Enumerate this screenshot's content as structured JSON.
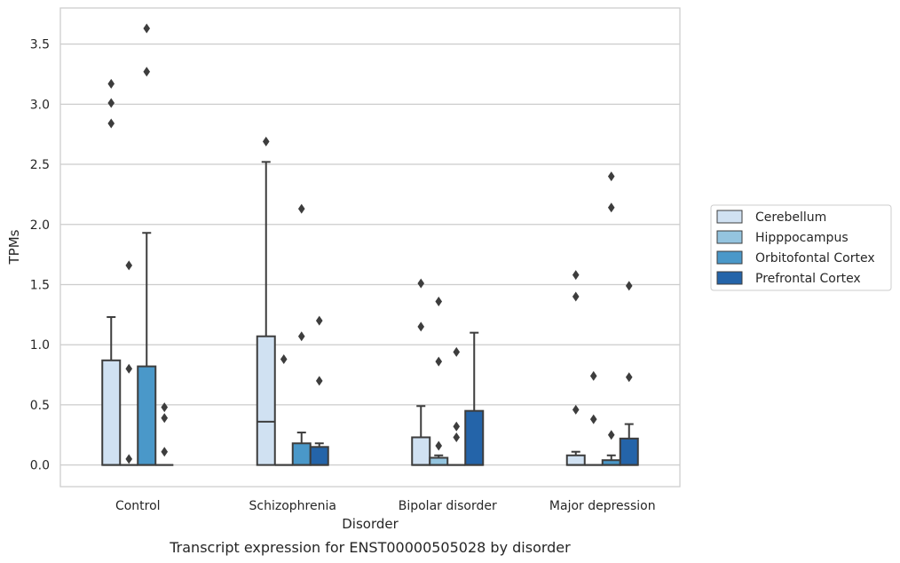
{
  "chart_data": {
    "type": "box",
    "title": "",
    "caption": "Transcript expression for ENST00000505028 by disorder",
    "xlabel": "Disorder",
    "ylabel": "TPMs",
    "ylim": [
      -0.18,
      3.8
    ],
    "yticks": [
      0.0,
      0.5,
      1.0,
      1.5,
      2.0,
      2.5,
      3.0,
      3.5
    ],
    "ytick_labels": [
      "0.0",
      "0.5",
      "1.0",
      "1.5",
      "2.0",
      "2.5",
      "3.0",
      "3.5"
    ],
    "grid": "horizontal",
    "legend_position": "right",
    "categories": [
      "Control",
      "Schizophrenia",
      "Bipolar disorder",
      "Major depression"
    ],
    "series": [
      {
        "name": "Cerebellum",
        "color": "#d0e1f2",
        "boxes": [
          {
            "q1": 0.0,
            "median": 0.0,
            "q3": 0.87,
            "whisker_low": 0.0,
            "whisker_high": 1.23,
            "outliers": [
              2.84,
              3.01,
              3.17
            ]
          },
          {
            "q1": 0.0,
            "median": 0.36,
            "q3": 1.07,
            "whisker_low": 0.0,
            "whisker_high": 2.52,
            "outliers": [
              2.69
            ]
          },
          {
            "q1": 0.0,
            "median": 0.0,
            "q3": 0.23,
            "whisker_low": 0.0,
            "whisker_high": 0.49,
            "outliers": [
              1.15,
              1.51
            ]
          },
          {
            "q1": 0.0,
            "median": 0.0,
            "q3": 0.08,
            "whisker_low": 0.0,
            "whisker_high": 0.11,
            "outliers": [
              0.46,
              1.4,
              1.58
            ]
          }
        ]
      },
      {
        "name": "Hipppocampus",
        "color": "#94c4df",
        "boxes": [
          {
            "q1": 0.0,
            "median": 0.0,
            "q3": 0.0,
            "whisker_low": 0.0,
            "whisker_high": 0.0,
            "outliers": [
              0.05,
              0.8,
              1.66
            ]
          },
          {
            "q1": 0.0,
            "median": 0.0,
            "q3": 0.0,
            "whisker_low": 0.0,
            "whisker_high": 0.0,
            "outliers": [
              0.88
            ]
          },
          {
            "q1": 0.0,
            "median": 0.0,
            "q3": 0.06,
            "whisker_low": 0.0,
            "whisker_high": 0.08,
            "outliers": [
              0.16,
              0.86,
              1.36
            ]
          },
          {
            "q1": 0.0,
            "median": 0.0,
            "q3": 0.0,
            "whisker_low": 0.0,
            "whisker_high": 0.0,
            "outliers": [
              0.38,
              0.74
            ]
          }
        ]
      },
      {
        "name": "Orbitofontal Cortex",
        "color": "#4a98c9",
        "boxes": [
          {
            "q1": 0.0,
            "median": 0.0,
            "q3": 0.82,
            "whisker_low": 0.0,
            "whisker_high": 1.93,
            "outliers": [
              3.27,
              3.63
            ]
          },
          {
            "q1": 0.0,
            "median": 0.0,
            "q3": 0.18,
            "whisker_low": 0.0,
            "whisker_high": 0.27,
            "outliers": [
              1.07,
              2.13
            ]
          },
          {
            "q1": 0.0,
            "median": 0.0,
            "q3": 0.0,
            "whisker_low": 0.0,
            "whisker_high": 0.0,
            "outliers": [
              0.23,
              0.32,
              0.94
            ]
          },
          {
            "q1": 0.0,
            "median": 0.0,
            "q3": 0.04,
            "whisker_low": 0.0,
            "whisker_high": 0.08,
            "outliers": [
              0.25,
              2.14,
              2.4
            ]
          }
        ]
      },
      {
        "name": "Prefrontal Cortex",
        "color": "#2464a9",
        "boxes": [
          {
            "q1": 0.0,
            "median": 0.0,
            "q3": 0.0,
            "whisker_low": 0.0,
            "whisker_high": 0.0,
            "outliers": [
              0.11,
              0.39,
              0.48
            ]
          },
          {
            "q1": 0.0,
            "median": 0.0,
            "q3": 0.15,
            "whisker_low": 0.0,
            "whisker_high": 0.18,
            "outliers": [
              0.7,
              1.2
            ]
          },
          {
            "q1": 0.0,
            "median": 0.0,
            "q3": 0.45,
            "whisker_low": 0.0,
            "whisker_high": 1.1,
            "outliers": []
          },
          {
            "q1": 0.0,
            "median": 0.0,
            "q3": 0.22,
            "whisker_low": 0.0,
            "whisker_high": 0.34,
            "outliers": [
              0.73,
              1.49
            ]
          }
        ]
      }
    ]
  }
}
